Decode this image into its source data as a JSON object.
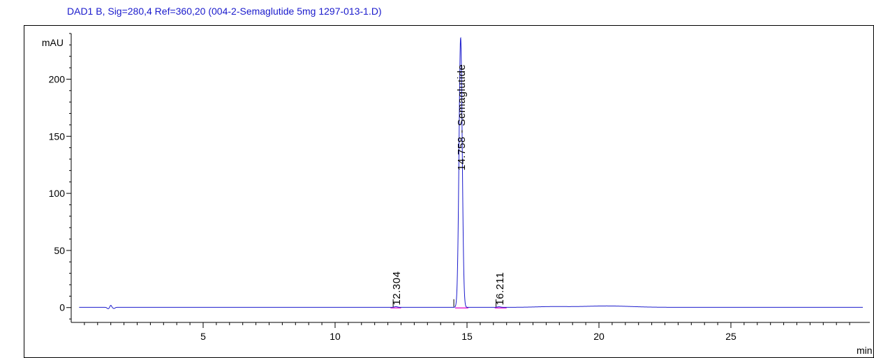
{
  "chart_data": {
    "type": "line",
    "title": "DAD1 B, Sig=280,4 Ref=360,20 (004-2-Semaglutide 5mg 1297-013-1.D)",
    "ylabel": "mAU",
    "xlabel": "min",
    "xlim": [
      0,
      30
    ],
    "ylim": [
      -13,
      240
    ],
    "x_ticks": [
      5,
      10,
      15,
      20,
      25
    ],
    "y_ticks": [
      0,
      50,
      100,
      150,
      200
    ],
    "x_minor_step": 0.5,
    "y_minor_step": 10,
    "grid": false,
    "colors": {
      "signal": "#1a1acc",
      "baseline": "#e000c8",
      "title": "#1a1acc",
      "axis": "#000000"
    },
    "series": [
      {
        "type": "chromatogram",
        "baseline": 0.2,
        "features": [
          {
            "x": 1.4,
            "y": -1.2,
            "width": 0.04
          },
          {
            "x": 1.5,
            "y": 1.8,
            "width": 0.03
          },
          {
            "x": 1.62,
            "y": -1.0,
            "width": 0.04
          },
          {
            "x": 12.304,
            "y": 0.6,
            "width": 0.06
          },
          {
            "x": 14.758,
            "y": 236,
            "width": 0.06
          },
          {
            "x": 16.211,
            "y": 0.5,
            "width": 0.06
          },
          {
            "x": 18.2,
            "y": 0.6,
            "width": 0.6
          },
          {
            "x": 20.3,
            "y": 1.2,
            "width": 0.9
          }
        ]
      }
    ],
    "peaks": [
      {
        "label": "12.304",
        "rt": 12.304,
        "label_bottom_y": 2,
        "bar_x": 12.2,
        "baseline": [
          12.1,
          12.5
        ]
      },
      {
        "label": "14.758 - Semaglutide",
        "rt": 14.758,
        "label_bottom_y": 120,
        "bar_x": 14.5,
        "baseline": [
          14.55,
          15.05
        ]
      },
      {
        "label": "16.211",
        "rt": 16.211,
        "label_bottom_y": 2,
        "bar_x": 16.1,
        "baseline": [
          16.05,
          16.5
        ]
      }
    ]
  }
}
